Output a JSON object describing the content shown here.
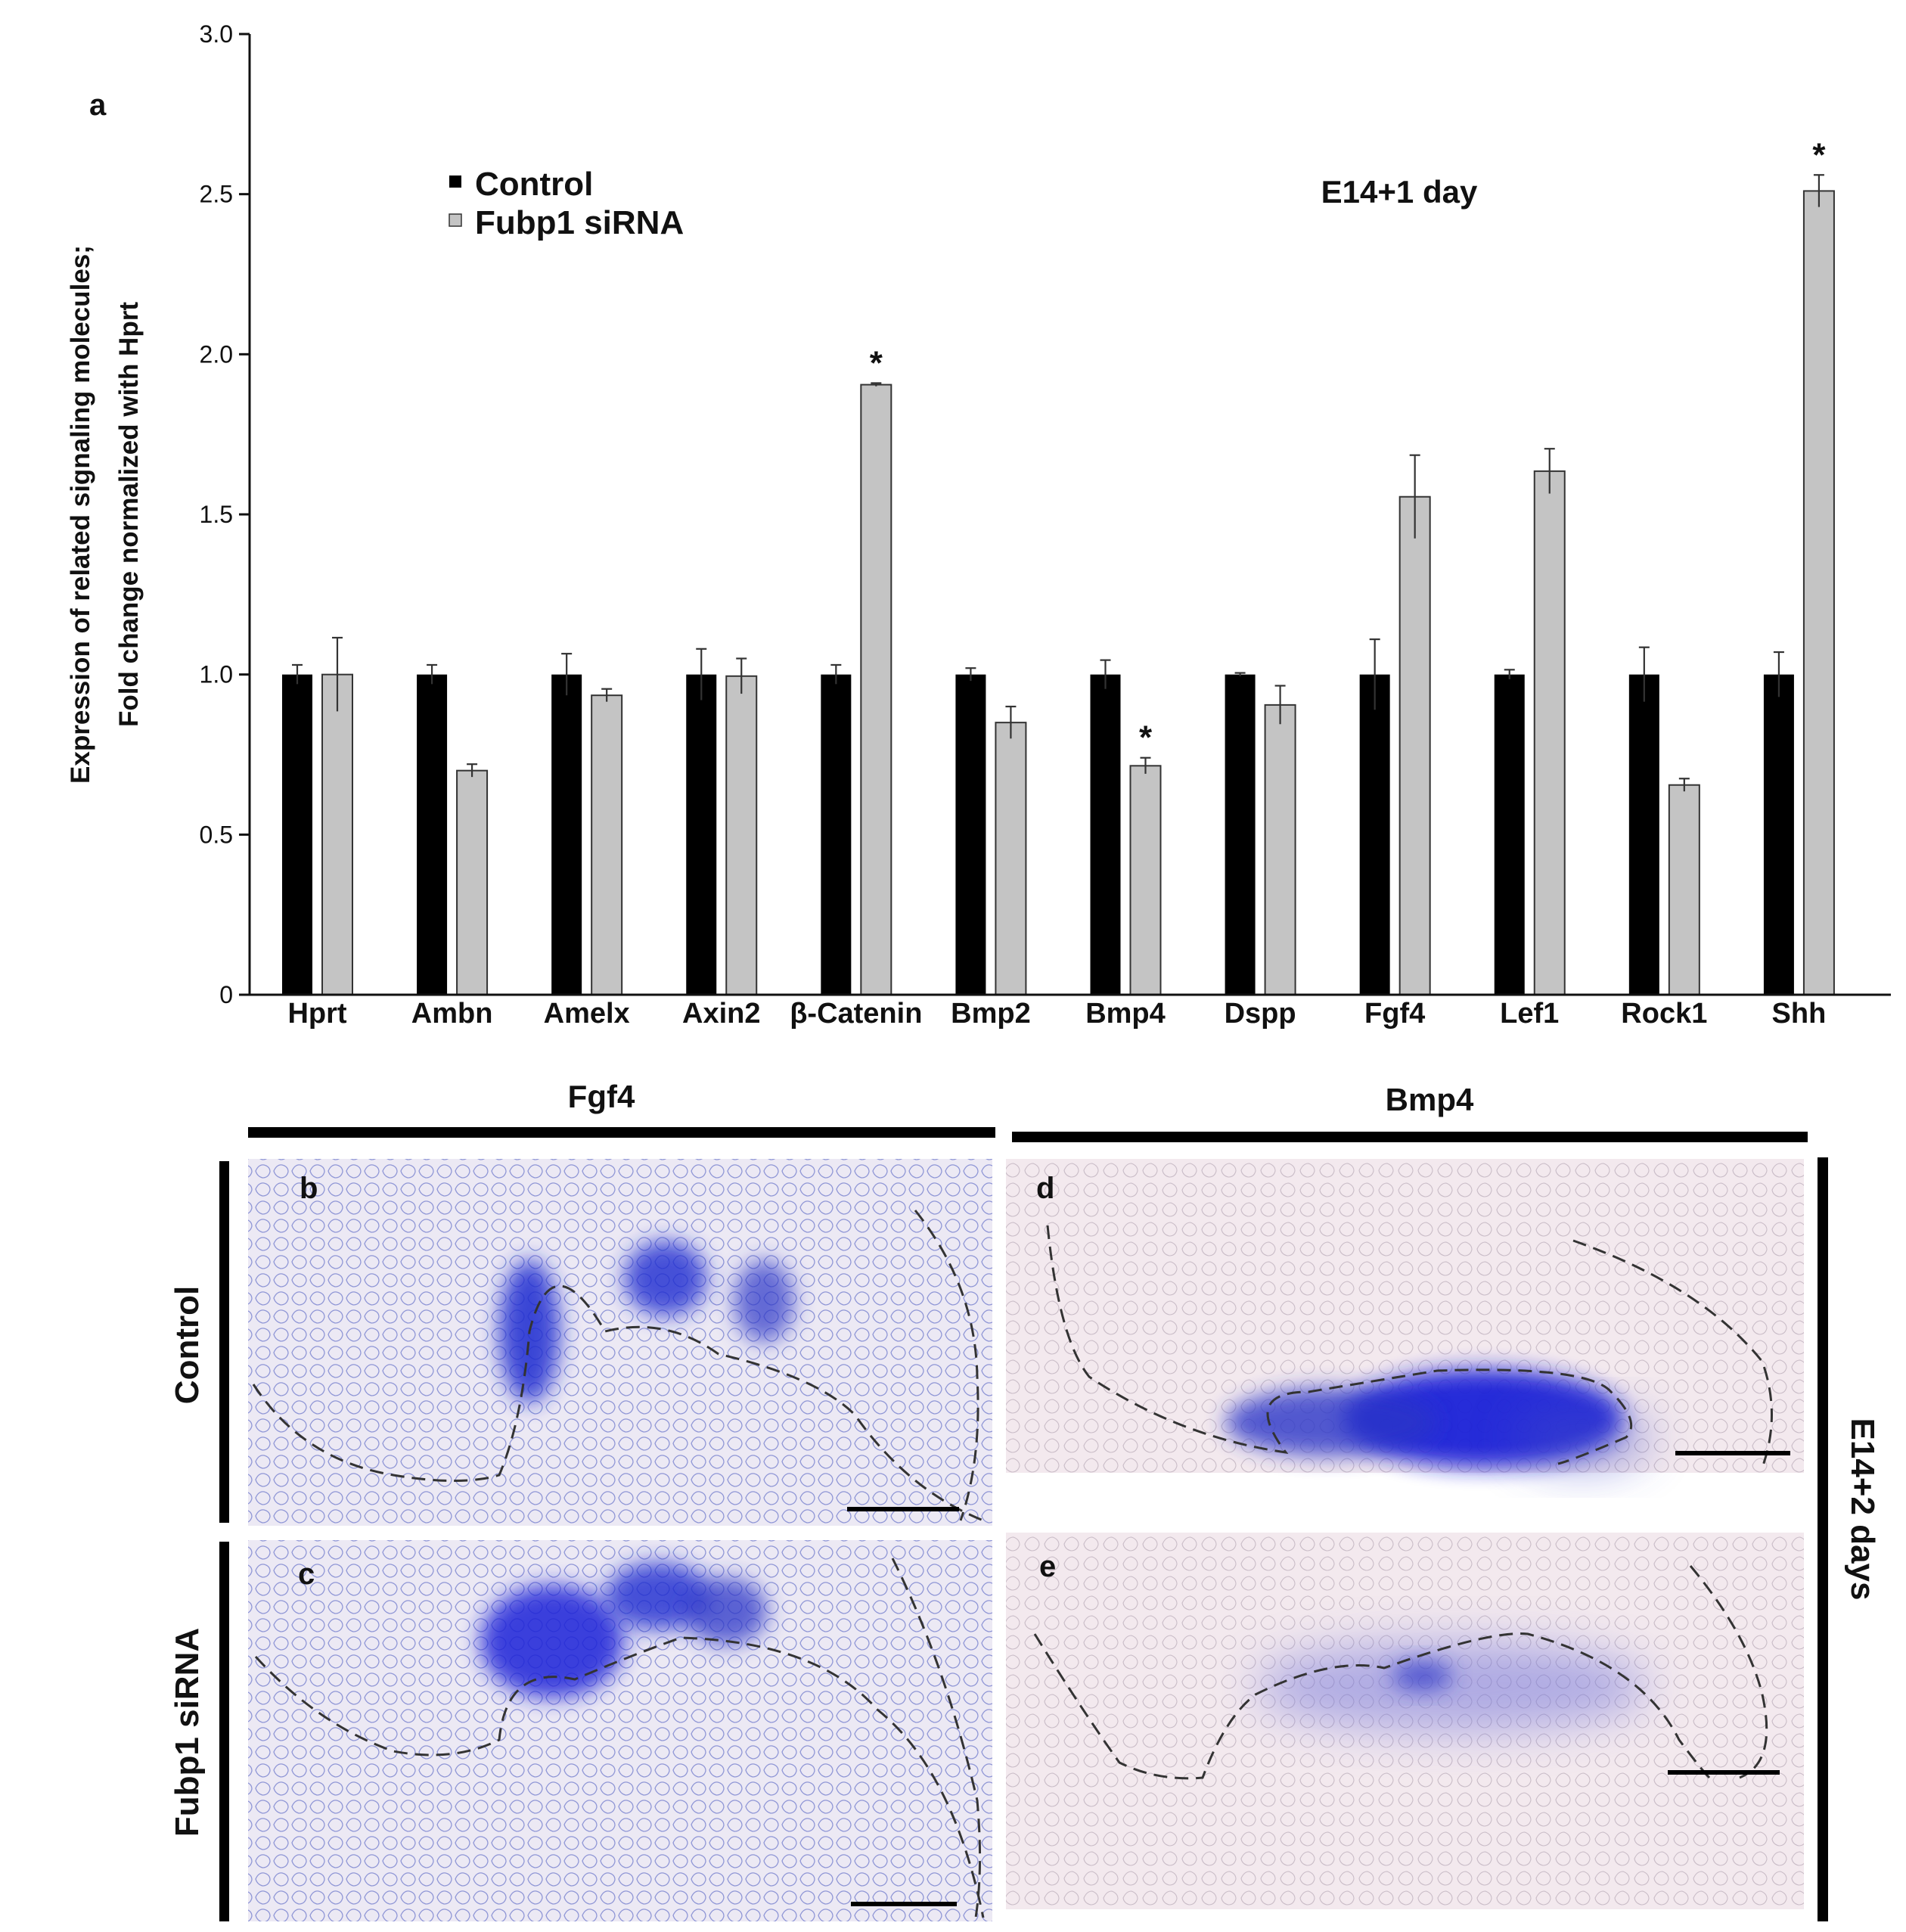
{
  "panel_a_label": "a",
  "chart_data": {
    "type": "bar",
    "title": "E14+1 day",
    "ylabel_line1": "Expression of related signaling molecules;",
    "ylabel_line2": "Fold change normalized with Hprt",
    "xlabel": "",
    "ylim": [
      0,
      3.0
    ],
    "yticks": [
      "0",
      "0.5",
      "1.0",
      "1.5",
      "2.0",
      "2.5",
      "3.0"
    ],
    "categories": [
      "Hprt",
      "Ambn",
      "Amelx",
      "Axin2",
      "β-Catenin",
      "Bmp2",
      "Bmp4",
      "Dspp",
      "Fgf4",
      "Lef1",
      "Rock1",
      "Shh"
    ],
    "series": [
      {
        "name": "Control",
        "color": "#000000",
        "values": [
          1.0,
          1.0,
          1.0,
          1.0,
          1.0,
          1.0,
          1.0,
          1.0,
          1.0,
          1.0,
          1.0,
          1.0
        ],
        "errors": [
          0.03,
          0.03,
          0.065,
          0.08,
          0.03,
          0.02,
          0.045,
          0.005,
          0.11,
          0.015,
          0.085,
          0.07
        ]
      },
      {
        "name": "Fubp1 siRNA",
        "color": "#c4c4c4",
        "values": [
          1.0,
          0.7,
          0.935,
          0.995,
          1.905,
          0.85,
          0.715,
          0.905,
          1.555,
          1.635,
          0.655,
          2.51
        ],
        "errors": [
          0.115,
          0.02,
          0.02,
          0.055,
          0.005,
          0.05,
          0.025,
          0.06,
          0.13,
          0.07,
          0.02,
          0.05
        ]
      }
    ],
    "significance_marker": "*",
    "significant": [
      "β-Catenin",
      "Bmp4",
      "Shh"
    ],
    "legend": [
      {
        "label": "Control",
        "color": "#000000"
      },
      {
        "label": "Fubp1 siRNA",
        "color": "#c4c4c4"
      }
    ]
  },
  "lower_panels": {
    "fgf4_header": "Fgf4",
    "bmp4_header": "Bmp4",
    "row_control": "Control",
    "row_sirna": "Fubp1 siRNA",
    "timepoint": "E14+2 days",
    "letters": {
      "b": "b",
      "c": "c",
      "d": "d",
      "e": "e"
    },
    "stain_color": "#2a35c8"
  }
}
